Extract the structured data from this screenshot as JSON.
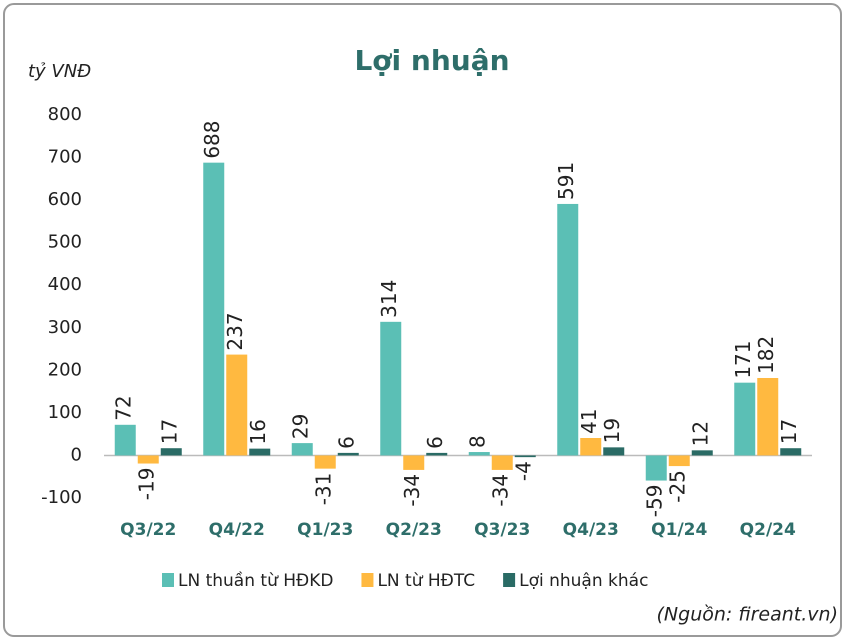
{
  "chart_data": {
    "type": "bar",
    "title": "Lợi nhuận",
    "y_axis_label": "tỷ VNĐ",
    "source": "(Nguồn: fireant.vn)",
    "categories": [
      "Q3/22",
      "Q4/22",
      "Q1/23",
      "Q2/23",
      "Q3/23",
      "Q4/23",
      "Q1/24",
      "Q2/24"
    ],
    "series": [
      {
        "name": "LN thuần từ HĐKD",
        "color": "#5bbfb5",
        "values": [
          72,
          688,
          29,
          314,
          8,
          591,
          -59,
          171
        ]
      },
      {
        "name": "LN từ HĐTC",
        "color": "#ffb940",
        "values": [
          -19,
          237,
          -31,
          -34,
          -34,
          41,
          -25,
          182
        ]
      },
      {
        "name": "Lợi nhuận khác",
        "color": "#2a6b65",
        "values": [
          17,
          16,
          6,
          6,
          -4,
          19,
          12,
          17
        ]
      }
    ],
    "ylim": [
      -100,
      800
    ],
    "yticks": [
      -100,
      0,
      100,
      200,
      300,
      400,
      500,
      600,
      700,
      800
    ],
    "grid": false,
    "legend": "bottom"
  }
}
